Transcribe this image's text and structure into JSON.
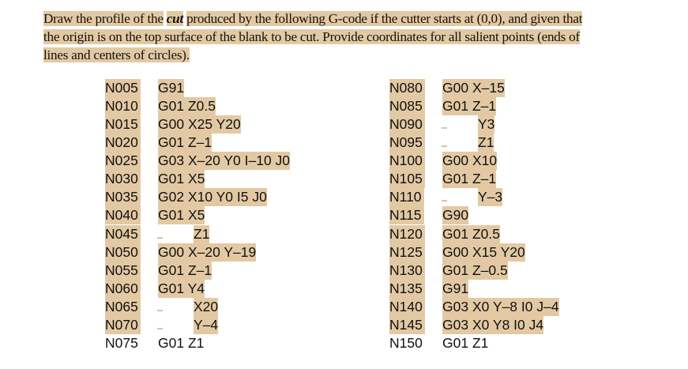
{
  "question": {
    "before": "Draw the profile of the",
    "emphasis": "cut",
    "after_line1": "produced by the following G-code if the cutter starts at (0,0), and given that",
    "line2": "the origin is on the top surface of the blank to be cut. Provide coordinates for all salient points (ends of",
    "line3": "lines and centers of circles)."
  },
  "highlight_color": "#e3c9a3",
  "program": {
    "left": [
      {
        "n": "N005",
        "code": "G91",
        "hl": true
      },
      {
        "n": "N010",
        "code": "G01 Z0.5",
        "hl": true
      },
      {
        "n": "N015",
        "code": "G00 X25 Y20",
        "hl": true
      },
      {
        "n": "N020",
        "code": "G01 Z–1",
        "hl": true
      },
      {
        "n": "N025",
        "code": "G03 X–20 Y0 I–10 J0",
        "hl": true
      },
      {
        "n": "N030",
        "code": "G01 X5",
        "hl": true
      },
      {
        "n": "N035",
        "code": "G02 X10 Y0 I5 J0",
        "hl": true
      },
      {
        "n": "N040",
        "code": "G01 X5",
        "hl": true
      },
      {
        "n": "N045",
        "code": "Z1",
        "hl": true,
        "blank": true
      },
      {
        "n": "N050",
        "code": "G00 X–20 Y–19",
        "hl": true
      },
      {
        "n": "N055",
        "code": "G01 Z–1",
        "hl": true
      },
      {
        "n": "N060",
        "code": "G01 Y4",
        "hl": true
      },
      {
        "n": "N065",
        "code": "X20",
        "hl": true,
        "blank": true
      },
      {
        "n": "N070",
        "code": "Y–4",
        "hl": true,
        "blank": true
      },
      {
        "n": "N075",
        "code": "G01 Z1",
        "hl": false
      }
    ],
    "right": [
      {
        "n": "N080",
        "code": "G00 X–15",
        "hl": true
      },
      {
        "n": "N085",
        "code": "G01 Z–1",
        "hl": true
      },
      {
        "n": "N090",
        "code": "Y3",
        "hl": true,
        "blank": true
      },
      {
        "n": "N095",
        "code": "Z1",
        "hl": true,
        "blank": true
      },
      {
        "n": "N100",
        "code": "G00 X10",
        "hl": true
      },
      {
        "n": "N105",
        "code": "G01 Z–1",
        "hl": true
      },
      {
        "n": "N110",
        "code": "Y–3",
        "hl": true,
        "blank": true
      },
      {
        "n": "N115",
        "code": "G90",
        "hl": true
      },
      {
        "n": "N120",
        "code": "G01 Z0.5",
        "hl": true
      },
      {
        "n": "N125",
        "code": "G00 X15 Y20",
        "hl": true
      },
      {
        "n": "N130",
        "code": "G01 Z–0.5",
        "hl": true
      },
      {
        "n": "N135",
        "code": "G91",
        "hl": true
      },
      {
        "n": "N140",
        "code": "G03 X0 Y–8 I0 J–4",
        "hl": true
      },
      {
        "n": "N145",
        "code": "G03 X0 Y8 I0 J4",
        "hl": true
      },
      {
        "n": "N150",
        "code": "G01 Z1",
        "hl": false
      }
    ]
  }
}
